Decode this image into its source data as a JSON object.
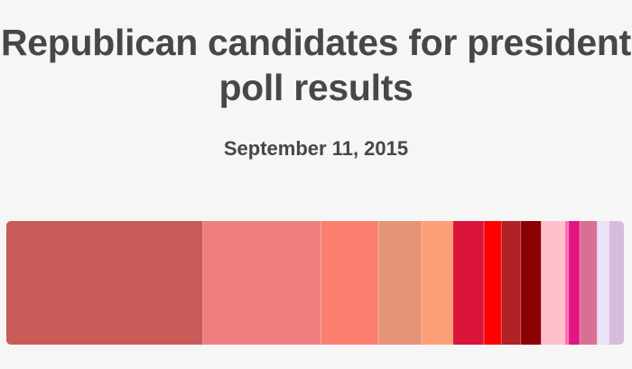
{
  "chart_data": {
    "type": "bar",
    "orientation": "stacked-horizontal",
    "title": "Republican candidates for president poll results",
    "subtitle": "September 11, 2015",
    "series": [
      {
        "value": 31.6,
        "color": "#c95b58"
      },
      {
        "value": 19.0,
        "color": "#ef7f7e"
      },
      {
        "value": 9.2,
        "color": "#fb7e6e"
      },
      {
        "value": 7.0,
        "color": "#e69478"
      },
      {
        "value": 5.0,
        "color": "#fda078"
      },
      {
        "value": 5.0,
        "color": "#db143a"
      },
      {
        "value": 2.8,
        "color": "#ff0000"
      },
      {
        "value": 3.1,
        "color": "#b12125"
      },
      {
        "value": 3.3,
        "color": "#8b0000"
      },
      {
        "value": 3.8,
        "color": "#ffbfcb"
      },
      {
        "value": 0.6,
        "color": "#fe70b3"
      },
      {
        "value": 1.8,
        "color": "#e11585"
      },
      {
        "value": 2.8,
        "color": "#d96f92"
      },
      {
        "value": 1.9,
        "color": "#e8e3f6"
      },
      {
        "value": 2.4,
        "color": "#d8bcdc"
      }
    ],
    "gap_color": "#ffffff"
  }
}
